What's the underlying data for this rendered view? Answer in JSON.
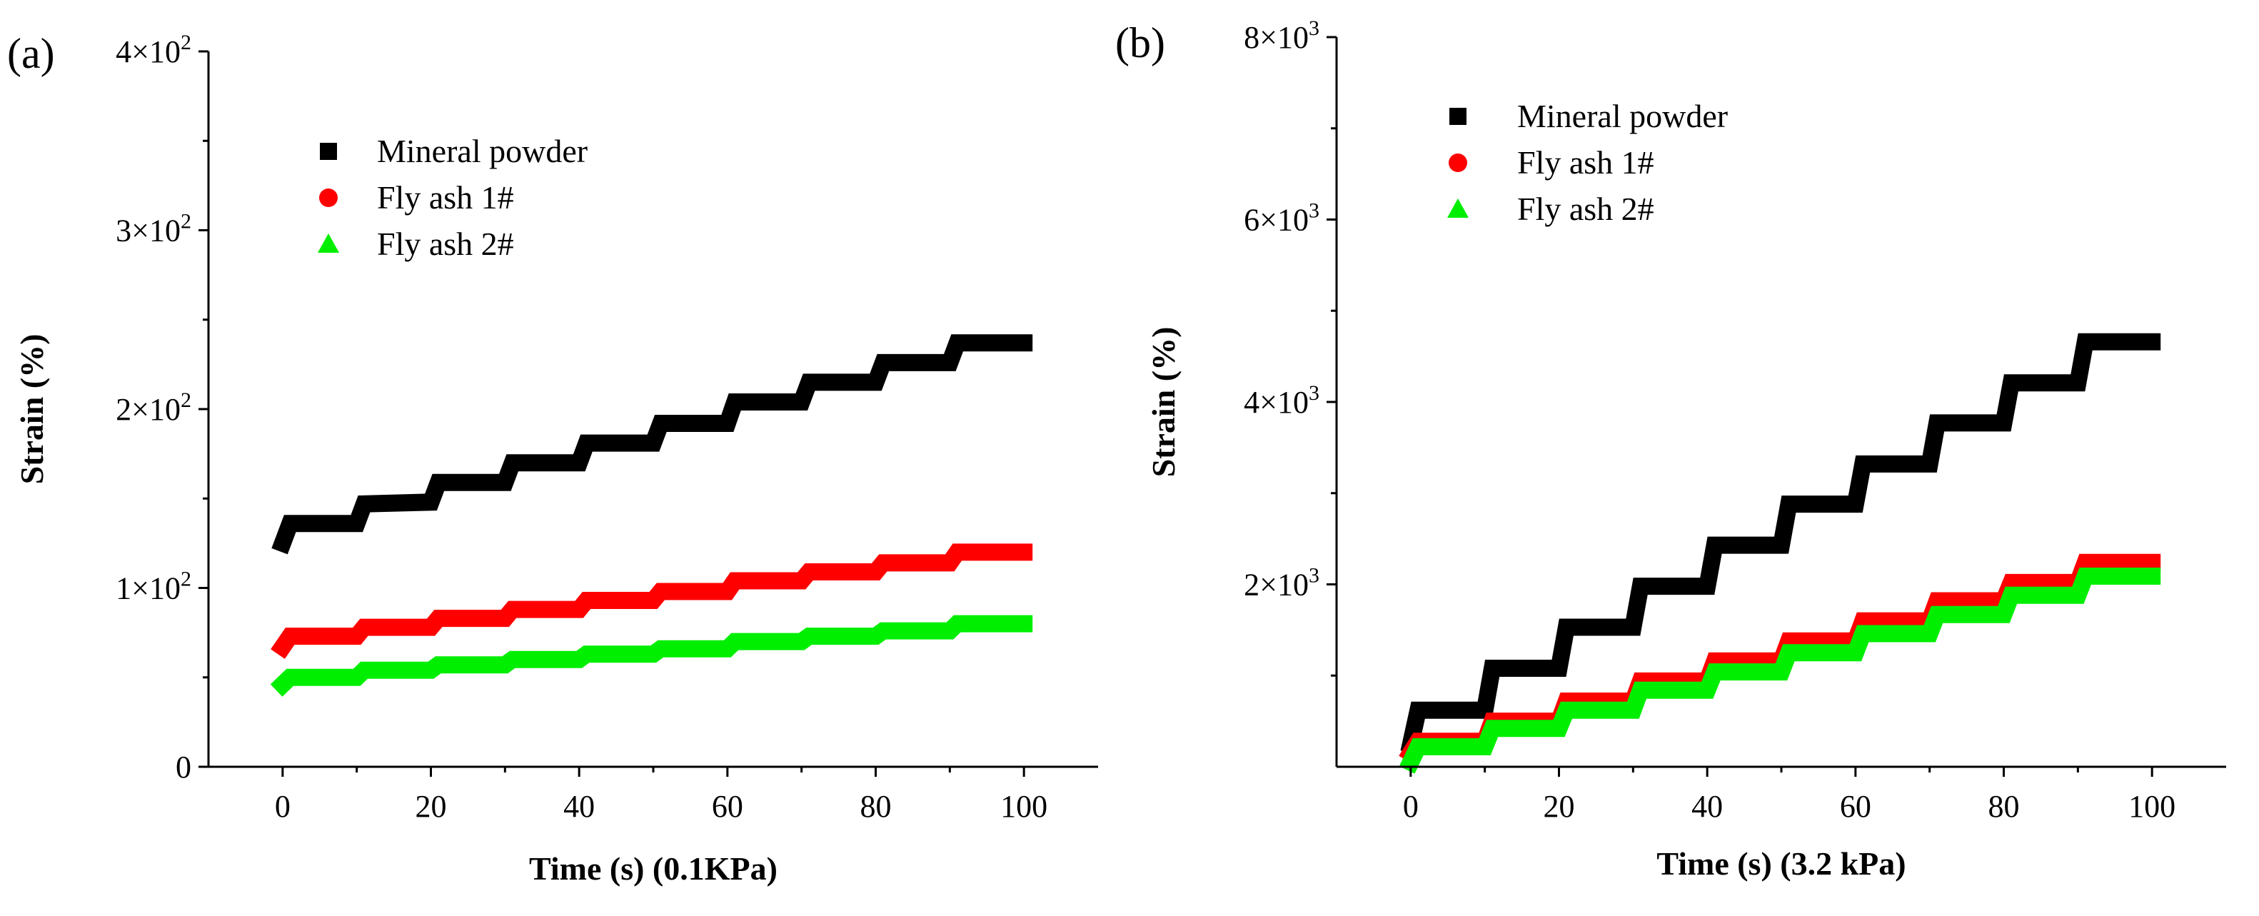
{
  "chart_data": [
    {
      "type": "line",
      "panel_label": "(a)",
      "xlabel": "Time (s)  (0.1KPa)",
      "ylabel": "Strain (%)",
      "xlim": [
        -10,
        110
      ],
      "ylim": [
        0,
        400
      ],
      "xticks": [
        0,
        20,
        40,
        60,
        80,
        100
      ],
      "xtick_labels": [
        "0",
        "20",
        "40",
        "60",
        "80",
        "100"
      ],
      "yticks": [
        0,
        100,
        200,
        300,
        400
      ],
      "ytick_labels": [
        {
          "mantissa": "0",
          "exponent": ""
        },
        {
          "mantissa": "1×10",
          "exponent": "2"
        },
        {
          "mantissa": "2×10",
          "exponent": "2"
        },
        {
          "mantissa": "3×10",
          "exponent": "2"
        },
        {
          "mantissa": "4×10",
          "exponent": "2"
        }
      ],
      "legend_position": "upper-left",
      "series": [
        {
          "name": "Mineral powder",
          "color": "#000000",
          "marker": "square",
          "x": [
            0,
            1,
            10,
            11,
            20,
            21,
            30,
            31,
            40,
            41,
            50,
            51,
            60,
            61,
            70,
            71,
            80,
            81,
            90,
            91,
            100
          ],
          "values": [
            125,
            136,
            136,
            147,
            148,
            159,
            159,
            170,
            170,
            181,
            181,
            192,
            192,
            204,
            204,
            215,
            215,
            226,
            226,
            237,
            237
          ]
        },
        {
          "name": "Fly ash 1#",
          "color": "#ff0000",
          "marker": "circle",
          "x": [
            0,
            1,
            10,
            11,
            20,
            21,
            30,
            31,
            40,
            41,
            50,
            51,
            60,
            61,
            70,
            71,
            80,
            81,
            90,
            91,
            100
          ],
          "values": [
            67,
            73,
            73,
            78,
            78,
            83,
            83,
            88,
            88,
            93,
            93,
            98,
            98,
            104,
            104,
            109,
            109,
            114,
            114,
            120,
            120
          ]
        },
        {
          "name": "Fly ash 2#",
          "color": "#00ee00",
          "marker": "triangle",
          "x": [
            0,
            1,
            10,
            11,
            20,
            21,
            30,
            31,
            40,
            41,
            50,
            51,
            60,
            61,
            70,
            71,
            80,
            81,
            90,
            91,
            100
          ],
          "values": [
            46,
            50,
            50,
            54,
            54,
            57,
            57,
            60,
            60,
            63,
            63,
            66,
            66,
            70,
            70,
            73,
            73,
            76,
            76,
            80,
            80
          ]
        }
      ]
    },
    {
      "type": "line",
      "panel_label": "(b)",
      "xlabel": "Time (s)  (3.2 kPa)",
      "ylabel": "Strain (%)",
      "xlim": [
        -10,
        110
      ],
      "ylim": [
        0,
        8000
      ],
      "xticks": [
        0,
        20,
        40,
        60,
        80,
        100
      ],
      "xtick_labels": [
        "0",
        "20",
        "40",
        "60",
        "80",
        "100"
      ],
      "yticks": [
        2000,
        4000,
        6000,
        8000
      ],
      "ytick_labels": [
        {
          "mantissa": "2×10",
          "exponent": "3"
        },
        {
          "mantissa": "4×10",
          "exponent": "3"
        },
        {
          "mantissa": "6×10",
          "exponent": "3"
        },
        {
          "mantissa": "8×10",
          "exponent": "3"
        }
      ],
      "legend_position": "upper-left",
      "series": [
        {
          "name": "Mineral powder",
          "color": "#000000",
          "marker": "square",
          "x": [
            0,
            1,
            10,
            11,
            20,
            21,
            30,
            31,
            40,
            41,
            50,
            51,
            60,
            61,
            70,
            71,
            80,
            81,
            90,
            91,
            100
          ],
          "values": [
            250,
            620,
            620,
            1080,
            1080,
            1530,
            1530,
            1980,
            1980,
            2430,
            2430,
            2880,
            2880,
            3320,
            3320,
            3770,
            3770,
            4210,
            4210,
            4660,
            4660
          ]
        },
        {
          "name": "Fly ash 1#",
          "color": "#ff0000",
          "marker": "circle",
          "x": [
            0,
            1,
            10,
            11,
            20,
            21,
            30,
            31,
            40,
            41,
            50,
            51,
            60,
            61,
            70,
            71,
            80,
            81,
            90,
            91,
            100
          ],
          "values": [
            150,
            280,
            280,
            500,
            500,
            720,
            720,
            940,
            940,
            1160,
            1160,
            1380,
            1380,
            1600,
            1600,
            1820,
            1820,
            2020,
            2020,
            2240,
            2240
          ]
        },
        {
          "name": "Fly ash 2#",
          "color": "#00ee00",
          "marker": "triangle",
          "x": [
            0,
            1,
            10,
            11,
            20,
            21,
            30,
            31,
            40,
            41,
            50,
            51,
            60,
            61,
            70,
            71,
            80,
            81,
            90,
            91,
            100
          ],
          "values": [
            50,
            220,
            220,
            420,
            420,
            620,
            620,
            840,
            840,
            1040,
            1040,
            1250,
            1250,
            1460,
            1460,
            1670,
            1670,
            1880,
            1880,
            2090,
            2090
          ]
        }
      ]
    }
  ]
}
